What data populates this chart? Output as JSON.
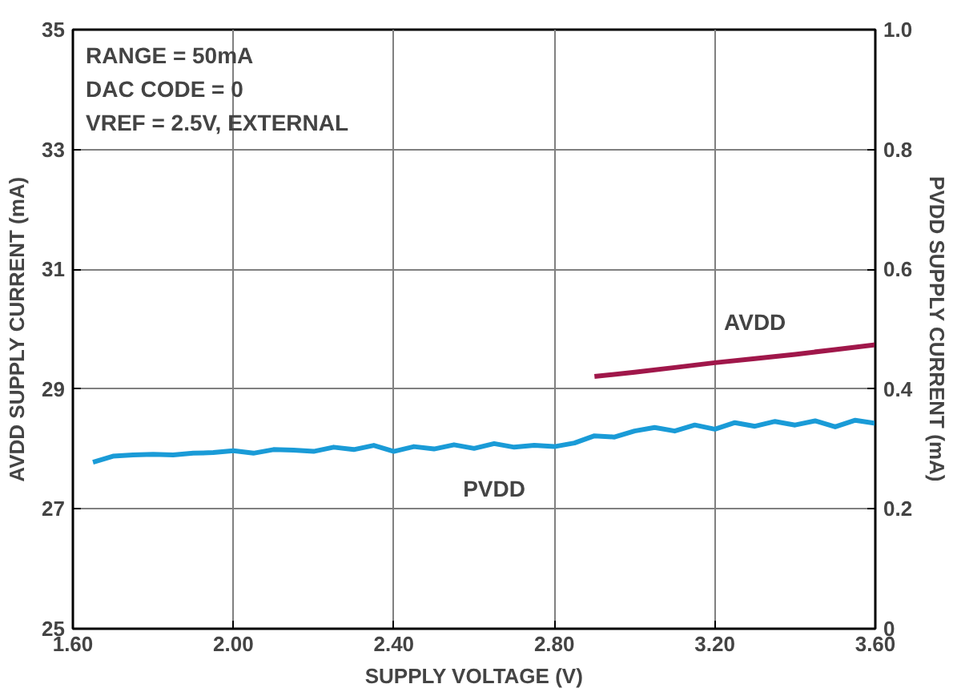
{
  "chart_data": {
    "type": "line",
    "xlabel": "SUPPLY VOLTAGE (V)",
    "ylabel": "AVDD SUPPLY CURRENT (mA)",
    "y2label": "PVDD SUPPLY CURRENT (mA)",
    "annotations": [
      "RANGE = 50mA",
      "DAC CODE = 0",
      "VREF = 2.5V, EXTERNAL"
    ],
    "xlim": [
      1.6,
      3.6
    ],
    "xticks": [
      {
        "value": 1.6,
        "label": "1.60"
      },
      {
        "value": 2.0,
        "label": "2.00"
      },
      {
        "value": 2.4,
        "label": "2.40"
      },
      {
        "value": 2.8,
        "label": "2.80"
      },
      {
        "value": 3.2,
        "label": "3.20"
      },
      {
        "value": 3.6,
        "label": "3.60"
      }
    ],
    "ylim": [
      25,
      35
    ],
    "yticks": [
      25,
      27,
      29,
      31,
      33,
      35
    ],
    "y2lim": [
      0,
      1.0
    ],
    "y2ticks": [
      0,
      0.2,
      0.4,
      0.6,
      0.8,
      {
        "value": 1.0,
        "label": "1.0"
      }
    ],
    "grid": true,
    "legend": false,
    "series": [
      {
        "name": "AVDD",
        "color": "#a0174a",
        "x": [
          2.9,
          3.0,
          3.1,
          3.2,
          3.3,
          3.4,
          3.5,
          3.6
        ],
        "values": [
          29.21,
          29.28,
          29.36,
          29.44,
          29.51,
          29.58,
          29.66,
          29.74
        ]
      },
      {
        "name": "PVDD",
        "color": "#1a9bd7",
        "axis": "y2",
        "x": [
          1.65,
          1.7,
          1.75,
          1.8,
          1.85,
          1.9,
          1.95,
          2.0,
          2.05,
          2.1,
          2.15,
          2.2,
          2.25,
          2.3,
          2.35,
          2.4,
          2.45,
          2.5,
          2.55,
          2.6,
          2.65,
          2.7,
          2.75,
          2.8,
          2.85,
          2.9,
          2.95,
          3.0,
          3.05,
          3.1,
          3.15,
          3.2,
          3.25,
          3.3,
          3.35,
          3.4,
          3.45,
          3.5,
          3.55,
          3.6
        ],
        "values": [
          0.278,
          0.288,
          0.29,
          0.291,
          0.29,
          0.293,
          0.294,
          0.297,
          0.293,
          0.299,
          0.298,
          0.296,
          0.303,
          0.299,
          0.306,
          0.296,
          0.304,
          0.3,
          0.307,
          0.301,
          0.309,
          0.303,
          0.306,
          0.304,
          0.31,
          0.322,
          0.32,
          0.33,
          0.336,
          0.33,
          0.34,
          0.333,
          0.344,
          0.338,
          0.346,
          0.34,
          0.347,
          0.337,
          0.348,
          0.343
        ]
      }
    ]
  }
}
